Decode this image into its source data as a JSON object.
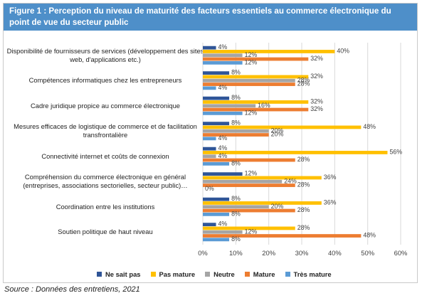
{
  "figure_title": "Figure 1 : Perception du niveau de maturité des facteurs essentiels au commerce électronique du point de vue du secteur public",
  "source": "Source : Données des entretiens, 2021",
  "colors": {
    "Ne sait pas": "#2f5597",
    "Pas mature": "#ffc000",
    "Neutre": "#a5a5a5",
    "Mature": "#ed7d31",
    "Très mature": "#5b9bd5"
  },
  "chart_data": {
    "type": "bar",
    "orientation": "horizontal",
    "categories": [
      "Disponibilité de fournisseurs de services (développement des sites web, d'applications etc.)",
      "Compétences informatiques chez les entrepreneurs",
      "Cadre juridique propice au commerce électronique",
      "Mesures efficaces de logistique de commerce et de facilitation transfrontalière",
      "Connectivité internet et coûts de connexion",
      "Compréhension du commerce électronique en général (entreprises, associations sectorielles, secteur public)…",
      "Coordination entre les institutions",
      "Soutien politique de haut niveau"
    ],
    "series": [
      {
        "name": "Ne sait pas",
        "values": [
          4,
          8,
          8,
          8,
          4,
          12,
          8,
          4
        ]
      },
      {
        "name": "Pas mature",
        "values": [
          40,
          32,
          32,
          48,
          56,
          36,
          36,
          28
        ]
      },
      {
        "name": "Neutre",
        "values": [
          12,
          28,
          16,
          20,
          4,
          24,
          20,
          12
        ]
      },
      {
        "name": "Mature",
        "values": [
          32,
          28,
          32,
          20,
          28,
          28,
          28,
          48
        ]
      },
      {
        "name": "Très mature",
        "values": [
          12,
          4,
          12,
          4,
          8,
          0,
          8,
          8
        ]
      }
    ],
    "value_suffix": "%",
    "xlim": [
      0,
      60
    ],
    "xticks": [
      "0%",
      "10%",
      "20%",
      "30%",
      "40%",
      "50%",
      "60%"
    ],
    "grid": true,
    "legend_position": "bottom"
  }
}
